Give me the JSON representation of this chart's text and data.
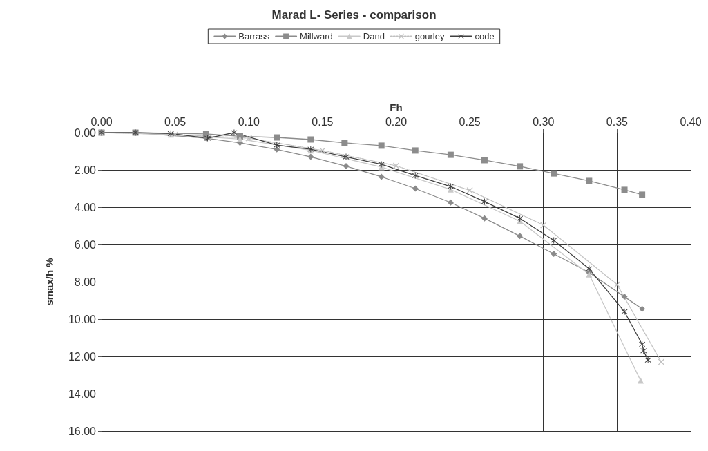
{
  "chart_data": {
    "type": "line",
    "title": "Marad L- Series - comparison",
    "xlabel": "Fh",
    "ylabel": "smax/h %",
    "xlim": [
      0,
      0.4
    ],
    "xticks": [
      {
        "value": 0,
        "label": "0.00"
      },
      {
        "value": 0.05,
        "label": "0.05"
      },
      {
        "value": 0.1,
        "label": "0.10"
      },
      {
        "value": 0.15,
        "label": "0.15"
      },
      {
        "value": 0.2,
        "label": "0.20"
      },
      {
        "value": 0.25,
        "label": "0.25"
      },
      {
        "value": 0.3,
        "label": "0.30"
      },
      {
        "value": 0.35,
        "label": "0.35"
      },
      {
        "value": 0.4,
        "label": "0.40"
      }
    ],
    "ylim": [
      16,
      0
    ],
    "yticks": [
      {
        "value": 0,
        "label": "0.00"
      },
      {
        "value": 2,
        "label": "2.00"
      },
      {
        "value": 4,
        "label": "4.00"
      },
      {
        "value": 6,
        "label": "6.00"
      },
      {
        "value": 8,
        "label": "8.00"
      },
      {
        "value": 10,
        "label": "10.00"
      },
      {
        "value": 12,
        "label": "12.00"
      },
      {
        "value": 14,
        "label": "14.00"
      },
      {
        "value": 16,
        "label": "16.00"
      }
    ],
    "grid": true,
    "legend": "top",
    "series": [
      {
        "name": "Barrass",
        "color": "#8a8a8a",
        "marker": "diamond",
        "x": [
          0,
          0.023,
          0.047,
          0.071,
          0.094,
          0.119,
          0.142,
          0.166,
          0.19,
          0.213,
          0.237,
          0.26,
          0.284,
          0.307,
          0.331,
          0.355,
          0.367
        ],
        "values": [
          0,
          0,
          null,
          0.3,
          0.55,
          0.9,
          1.3,
          1.8,
          2.37,
          3.0,
          3.75,
          4.6,
          5.55,
          6.5,
          7.5,
          8.8,
          9.45
        ]
      },
      {
        "name": "Millward",
        "color": "#8c8c8c",
        "marker": "square",
        "x": [
          0,
          0.023,
          0.047,
          0.071,
          0.094,
          0.119,
          0.142,
          0.165,
          0.19,
          0.213,
          0.237,
          0.26,
          0.284,
          0.307,
          0.331,
          0.355,
          0.367
        ],
        "values": [
          0,
          0,
          null,
          0.07,
          0.2,
          0.26,
          0.37,
          0.55,
          0.7,
          0.96,
          1.19,
          1.48,
          1.81,
          2.19,
          2.59,
          3.07,
          3.33
        ]
      },
      {
        "name": "Dand",
        "color": "#c8c8c8",
        "marker": "triangle",
        "x": [
          0,
          0.047,
          0.094,
          0.142,
          0.19,
          0.237,
          0.284,
          0.331,
          0.366
        ],
        "values": [
          0,
          0.1,
          0.35,
          0.95,
          1.85,
          3.05,
          4.75,
          7.6,
          13.3
        ]
      },
      {
        "name": "gourley",
        "color": "#c0c0c0",
        "marker": "cross",
        "line_style": "dotted",
        "x": [
          0,
          0.05,
          0.1,
          0.15,
          0.2,
          0.25,
          0.3,
          0.35,
          0.38
        ],
        "values": [
          0,
          0.1,
          0.3,
          0.96,
          1.78,
          3.1,
          4.96,
          8.15,
          12.3
        ]
      },
      {
        "name": "code",
        "color": "#404040",
        "marker": "star",
        "x": [
          0,
          0.023,
          0.047,
          0.072,
          0.09,
          0.119,
          0.142,
          0.166,
          0.19,
          0.213,
          0.237,
          0.26,
          0.284,
          0.307,
          0.331,
          0.355,
          0.367,
          0.368,
          0.371
        ],
        "values": [
          0,
          0,
          0.05,
          0.3,
          0,
          0.67,
          0.89,
          1.3,
          1.7,
          2.3,
          2.89,
          3.7,
          4.6,
          5.78,
          7.3,
          9.6,
          11.35,
          11.7,
          12.2
        ]
      }
    ]
  }
}
